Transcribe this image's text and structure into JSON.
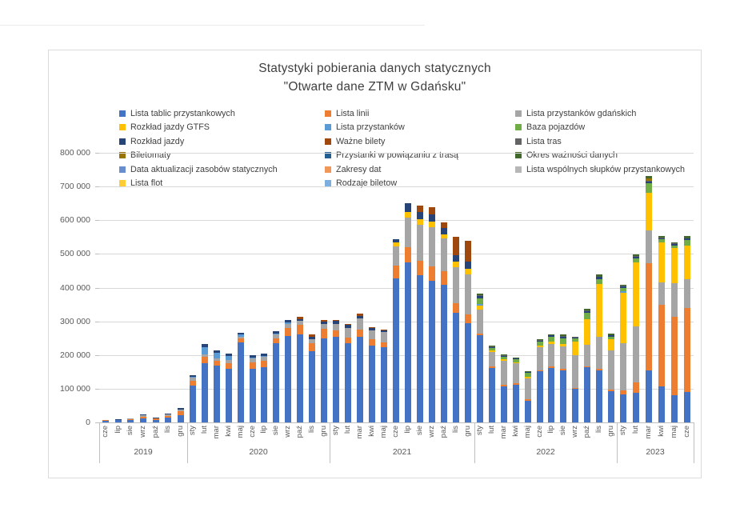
{
  "chart_data": {
    "type": "bar",
    "stacked": true,
    "title": "Statystyki pobierania danych statycznych",
    "subtitle": "\"Otwarte dane ZTM w Gdańsku\"",
    "xlabel": "",
    "ylabel": "",
    "grid": true,
    "legend_position": "top",
    "ylim": [
      0,
      800000
    ],
    "y_ticks": [
      0,
      100000,
      200000,
      300000,
      400000,
      500000,
      600000,
      700000,
      800000
    ],
    "year_groups": [
      {
        "year": "2019",
        "count": 7
      },
      {
        "year": "2020",
        "count": 12
      },
      {
        "year": "2021",
        "count": 12
      },
      {
        "year": "2022",
        "count": 12
      },
      {
        "year": "2023",
        "count": 6
      }
    ],
    "categories": [
      "cze",
      "lip",
      "sie",
      "wrz",
      "paź",
      "lis",
      "gru",
      "sty",
      "lut",
      "mar",
      "kwi",
      "maj",
      "cze",
      "lip",
      "sie",
      "wrz",
      "paź",
      "lis",
      "gru",
      "sty",
      "lut",
      "mar",
      "kwi",
      "maj",
      "cze",
      "lip",
      "sie",
      "wrz",
      "paź",
      "lis",
      "gru",
      "sty",
      "lut",
      "mar",
      "kwi",
      "maj",
      "cze",
      "lip",
      "sie",
      "wrz",
      "paź",
      "lis",
      "gru",
      "sty",
      "lut",
      "mar",
      "kwi",
      "maj",
      "cze"
    ],
    "series": [
      {
        "name": "Lista tablic przystankowych",
        "color": "#4472C4",
        "values": [
          5000,
          6000,
          7000,
          12000,
          8000,
          14000,
          22000,
          110000,
          176000,
          169000,
          160000,
          238000,
          160000,
          163000,
          235000,
          256000,
          261000,
          210000,
          250000,
          255000,
          235000,
          255000,
          228000,
          222000,
          428000,
          475000,
          437000,
          420000,
          409000,
          325000,
          295000,
          258000,
          162000,
          107000,
          112000,
          64000,
          152000,
          162000,
          155000,
          100000,
          164000,
          155000,
          92000,
          83000,
          88000,
          154000,
          107000,
          81000,
          90000
        ]
      },
      {
        "name": "Lista linii",
        "color": "#ED7D31",
        "values": [
          1000,
          1000,
          2000,
          5000,
          3000,
          6000,
          10000,
          14000,
          18000,
          14000,
          16000,
          10000,
          18000,
          20000,
          15000,
          24000,
          28000,
          26000,
          28000,
          18000,
          16000,
          20000,
          18000,
          16000,
          38000,
          45000,
          43000,
          44000,
          40000,
          29000,
          26000,
          6000,
          3000,
          4000,
          3000,
          4000,
          3000,
          3000,
          3000,
          3000,
          3000,
          4000,
          4000,
          12000,
          30000,
          318000,
          242000,
          232000,
          250000
        ]
      },
      {
        "name": "Lista przystanków gdańskich",
        "color": "#A5A5A5",
        "values": [
          1000,
          1000,
          2000,
          4000,
          2000,
          4000,
          7000,
          8000,
          8000,
          8000,
          10000,
          6000,
          12000,
          12000,
          10000,
          13000,
          12000,
          12000,
          14000,
          20000,
          30000,
          33000,
          28000,
          30000,
          56000,
          88000,
          107000,
          116000,
          96000,
          106000,
          119000,
          70000,
          44000,
          72000,
          60000,
          63000,
          68000,
          68000,
          68000,
          96000,
          63000,
          96000,
          118000,
          140000,
          167000,
          98000,
          67000,
          100000,
          85000
        ]
      },
      {
        "name": "Rozkład jazdy GTFS",
        "color": "#FFC000",
        "values": [
          0,
          0,
          0,
          0,
          0,
          0,
          0,
          0,
          0,
          0,
          0,
          0,
          0,
          0,
          0,
          0,
          0,
          0,
          0,
          0,
          0,
          0,
          0,
          0,
          12000,
          16000,
          16000,
          16000,
          14000,
          16000,
          15000,
          12000,
          4000,
          4000,
          4000,
          5000,
          5000,
          6000,
          6000,
          40000,
          76000,
          155000,
          32000,
          150000,
          190000,
          112000,
          117000,
          104000,
          100000
        ]
      },
      {
        "name": "Lista przystanków",
        "color": "#5B9BD5",
        "values": [
          0,
          0,
          0,
          0,
          0,
          0,
          0,
          4000,
          22000,
          16000,
          12000,
          6000,
          3000,
          3000,
          4000,
          4000,
          0,
          0,
          0,
          0,
          0,
          0,
          0,
          0,
          0,
          0,
          0,
          0,
          0,
          0,
          0,
          6000,
          0,
          0,
          0,
          0,
          0,
          0,
          0,
          0,
          0,
          0,
          0,
          4000,
          0,
          0,
          0,
          0,
          0
        ]
      },
      {
        "name": "Baza pojazdów",
        "color": "#70AD47",
        "values": [
          0,
          0,
          0,
          0,
          0,
          0,
          0,
          0,
          0,
          0,
          0,
          0,
          0,
          0,
          0,
          0,
          0,
          0,
          0,
          0,
          0,
          0,
          0,
          0,
          0,
          0,
          0,
          0,
          0,
          0,
          0,
          16000,
          8000,
          8000,
          8000,
          10000,
          12000,
          14000,
          18000,
          10000,
          20000,
          16000,
          8000,
          10000,
          12000,
          28000,
          10000,
          8000,
          15000
        ]
      },
      {
        "name": "Rozkład jazdy",
        "color": "#264478",
        "values": [
          1000,
          1000,
          1000,
          3000,
          1000,
          2000,
          4000,
          4000,
          8000,
          7000,
          7000,
          6000,
          6000,
          6000,
          6000,
          7000,
          6000,
          6000,
          8000,
          8000,
          8000,
          7000,
          6000,
          5000,
          10000,
          27000,
          22000,
          22000,
          18000,
          20000,
          22000,
          8000,
          3000,
          3000,
          3000,
          3000,
          3000,
          5000,
          5000,
          3000,
          5000,
          6000,
          4000,
          4000,
          5000,
          5000,
          4000,
          4000,
          5000
        ]
      },
      {
        "name": "Ważne bilety",
        "color": "#9E480E",
        "values": [
          0,
          0,
          0,
          0,
          0,
          0,
          0,
          0,
          0,
          0,
          0,
          0,
          0,
          0,
          0,
          0,
          6000,
          7000,
          4000,
          3000,
          3000,
          8000,
          3000,
          3000,
          0,
          0,
          19000,
          21000,
          17000,
          55000,
          62000,
          0,
          0,
          0,
          0,
          0,
          0,
          0,
          0,
          0,
          0,
          0,
          0,
          0,
          0,
          0,
          0,
          0,
          0
        ]
      },
      {
        "name": "Lista tras",
        "color": "#636363",
        "values": [
          0,
          0,
          0,
          0,
          0,
          0,
          0,
          0,
          0,
          0,
          0,
          0,
          0,
          0,
          0,
          0,
          0,
          0,
          0,
          0,
          0,
          0,
          0,
          0,
          0,
          0,
          0,
          0,
          0,
          0,
          0,
          1000,
          1000,
          1000,
          1000,
          1000,
          1000,
          1000,
          1000,
          1000,
          1000,
          1000,
          1000,
          2000,
          2000,
          3000,
          2000,
          2000,
          2000
        ]
      },
      {
        "name": "Biletomaty",
        "color": "#997300",
        "values": [
          0,
          0,
          0,
          0,
          0,
          0,
          0,
          0,
          0,
          0,
          0,
          0,
          0,
          0,
          0,
          0,
          0,
          0,
          0,
          0,
          0,
          0,
          0,
          0,
          0,
          0,
          0,
          0,
          0,
          0,
          0,
          0,
          0,
          0,
          0,
          0,
          0,
          0,
          0,
          0,
          0,
          0,
          0,
          0,
          0,
          7000,
          0,
          0,
          0
        ]
      },
      {
        "name": "Przystanki w powiązaniu z trasą",
        "color": "#255E91",
        "values": [
          0,
          0,
          0,
          0,
          0,
          0,
          0,
          0,
          0,
          0,
          0,
          0,
          0,
          0,
          0,
          0,
          0,
          0,
          0,
          0,
          0,
          0,
          0,
          0,
          0,
          0,
          0,
          0,
          0,
          0,
          0,
          0,
          0,
          0,
          0,
          0,
          0,
          0,
          0,
          0,
          0,
          0,
          0,
          0,
          0,
          0,
          0,
          0,
          0
        ]
      },
      {
        "name": "Okres ważności danych",
        "color": "#43682B",
        "values": [
          0,
          0,
          0,
          0,
          0,
          0,
          0,
          0,
          0,
          0,
          0,
          0,
          0,
          0,
          0,
          0,
          0,
          0,
          0,
          0,
          0,
          0,
          0,
          0,
          0,
          0,
          0,
          0,
          0,
          0,
          0,
          6000,
          2000,
          2000,
          2000,
          3000,
          2000,
          3000,
          4000,
          2000,
          4000,
          5000,
          4000,
          3000,
          4000,
          7000,
          4000,
          4000,
          6000
        ]
      },
      {
        "name": "Data aktualizacji zasobów statycznych",
        "color": "#698ED0",
        "values": [
          0,
          0,
          0,
          0,
          0,
          0,
          0,
          0,
          0,
          0,
          0,
          0,
          0,
          0,
          0,
          0,
          0,
          0,
          0,
          0,
          0,
          0,
          0,
          0,
          0,
          0,
          0,
          0,
          0,
          0,
          0,
          0,
          0,
          0,
          0,
          0,
          0,
          0,
          0,
          0,
          0,
          0,
          0,
          0,
          0,
          0,
          0,
          0,
          0
        ]
      },
      {
        "name": "Zakresy dat",
        "color": "#F1975A",
        "values": [
          0,
          0,
          0,
          0,
          0,
          0,
          0,
          0,
          0,
          0,
          0,
          0,
          0,
          0,
          0,
          0,
          0,
          0,
          0,
          0,
          0,
          0,
          0,
          0,
          0,
          0,
          0,
          0,
          0,
          0,
          0,
          0,
          0,
          0,
          0,
          0,
          0,
          0,
          0,
          0,
          0,
          0,
          0,
          0,
          0,
          0,
          0,
          0,
          0
        ]
      },
      {
        "name": "Lista wspólnych słupków przystankowych",
        "color": "#B7B7B7",
        "values": [
          0,
          0,
          0,
          0,
          0,
          0,
          0,
          0,
          0,
          0,
          0,
          0,
          0,
          0,
          0,
          0,
          0,
          0,
          0,
          0,
          0,
          0,
          0,
          0,
          0,
          0,
          0,
          0,
          0,
          0,
          0,
          0,
          0,
          0,
          0,
          0,
          0,
          0,
          0,
          0,
          0,
          0,
          0,
          0,
          0,
          0,
          0,
          0,
          0
        ]
      },
      {
        "name": "Lista flot",
        "color": "#FFCD33",
        "values": [
          0,
          0,
          0,
          0,
          0,
          0,
          0,
          0,
          0,
          0,
          0,
          0,
          0,
          0,
          0,
          0,
          0,
          0,
          0,
          0,
          0,
          0,
          0,
          0,
          0,
          0,
          0,
          0,
          0,
          0,
          0,
          0,
          0,
          0,
          0,
          0,
          0,
          0,
          0,
          0,
          0,
          0,
          0,
          0,
          0,
          0,
          0,
          0,
          0
        ]
      },
      {
        "name": "Rodzaje biletow",
        "color": "#7CAFDD",
        "values": [
          0,
          0,
          0,
          0,
          0,
          0,
          0,
          0,
          0,
          0,
          0,
          0,
          0,
          0,
          0,
          0,
          0,
          0,
          0,
          0,
          0,
          0,
          0,
          0,
          0,
          0,
          0,
          0,
          0,
          0,
          0,
          0,
          0,
          0,
          0,
          0,
          0,
          0,
          0,
          0,
          0,
          0,
          0,
          0,
          0,
          0,
          0,
          0,
          0
        ]
      }
    ]
  }
}
